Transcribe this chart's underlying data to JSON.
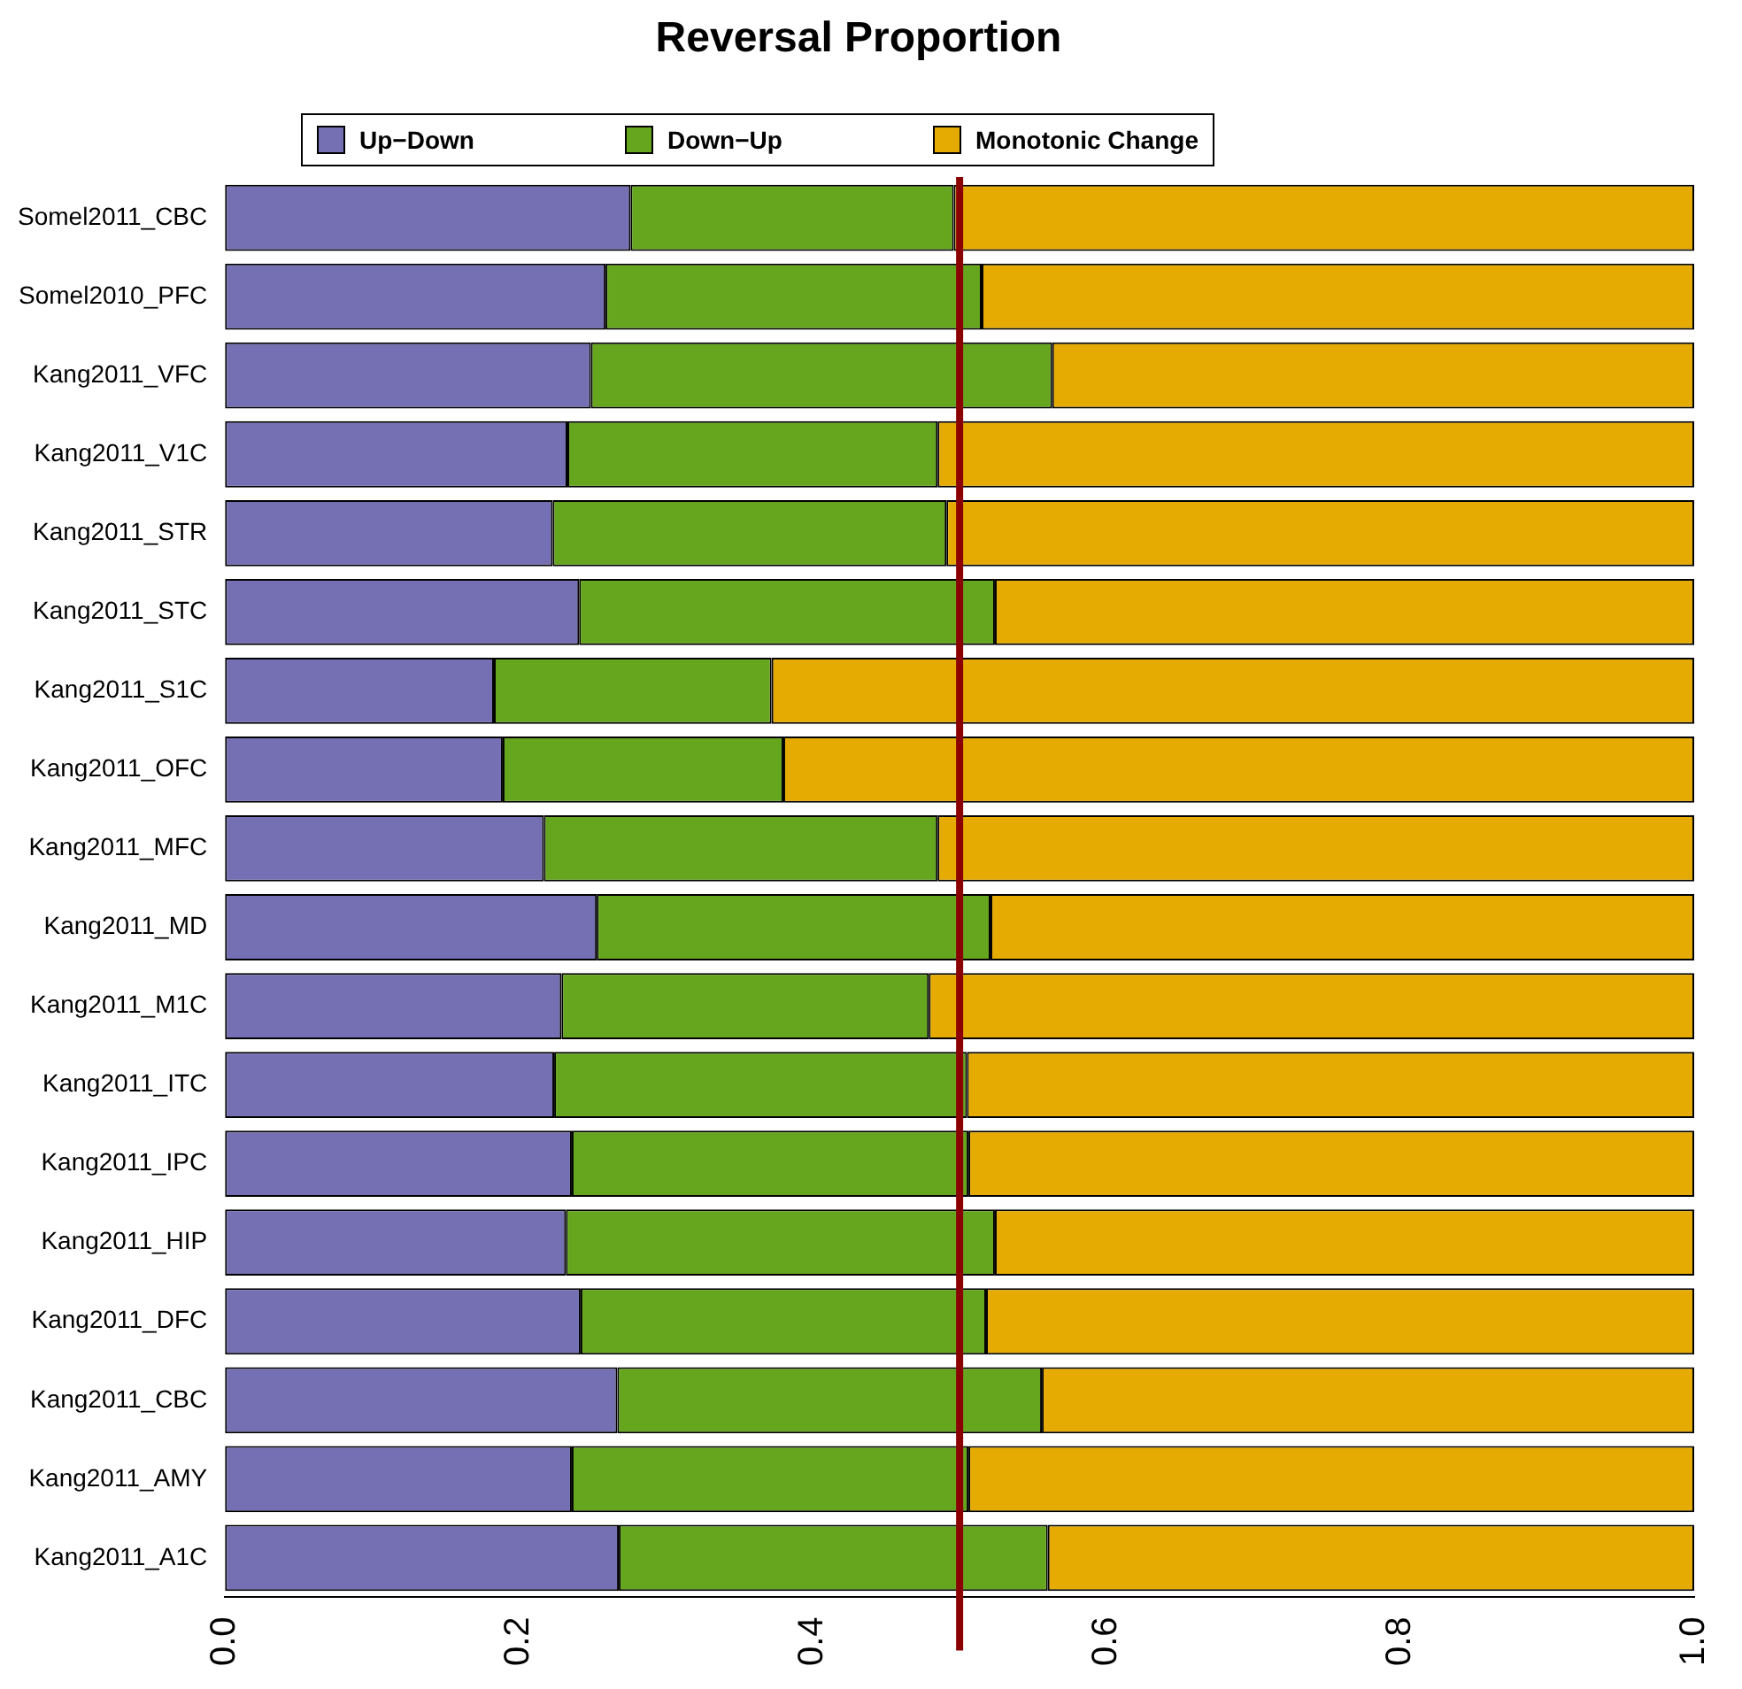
{
  "chart_data": {
    "type": "bar",
    "orientation": "horizontal",
    "stacked": true,
    "title": "Reversal Proportion",
    "categories": [
      "Somel2011_CBC",
      "Somel2010_PFC",
      "Kang2011_VFC",
      "Kang2011_V1C",
      "Kang2011_STR",
      "Kang2011_STC",
      "Kang2011_S1C",
      "Kang2011_OFC",
      "Kang2011_MFC",
      "Kang2011_MD",
      "Kang2011_M1C",
      "Kang2011_ITC",
      "Kang2011_IPC",
      "Kang2011_HIP",
      "Kang2011_DFC",
      "Kang2011_CBC",
      "Kang2011_AMY",
      "Kang2011_A1C"
    ],
    "series": [
      {
        "name": "Up−Down",
        "color": "#7570b3",
        "values": [
          0.276,
          0.259,
          0.249,
          0.233,
          0.223,
          0.241,
          0.183,
          0.189,
          0.217,
          0.253,
          0.229,
          0.224,
          0.236,
          0.232,
          0.242,
          0.267,
          0.236,
          0.268
        ]
      },
      {
        "name": "Down−Up",
        "color": "#66a61e",
        "values": [
          0.22,
          0.256,
          0.314,
          0.252,
          0.268,
          0.283,
          0.189,
          0.191,
          0.268,
          0.268,
          0.25,
          0.281,
          0.27,
          0.292,
          0.276,
          0.289,
          0.27,
          0.292
        ]
      },
      {
        "name": "Monotonic Change",
        "color": "#e6ab02",
        "values": [
          0.504,
          0.485,
          0.437,
          0.515,
          0.509,
          0.476,
          0.628,
          0.62,
          0.515,
          0.479,
          0.521,
          0.495,
          0.494,
          0.476,
          0.482,
          0.444,
          0.494,
          0.44
        ]
      }
    ],
    "xlim": [
      0,
      1
    ],
    "xticks": [
      {
        "value": 0,
        "label": "0.0"
      },
      {
        "value": 0.2,
        "label": "0.2"
      },
      {
        "value": 0.4,
        "label": "0.4"
      },
      {
        "value": 0.6,
        "label": "0.6"
      },
      {
        "value": 0.8,
        "label": "0.8"
      },
      {
        "value": 1,
        "label": "1.0"
      }
    ],
    "ref_lines": [
      {
        "axis": "x",
        "value": 0.5,
        "color": "#8b0000"
      }
    ],
    "legend": "top left",
    "grid": false
  }
}
